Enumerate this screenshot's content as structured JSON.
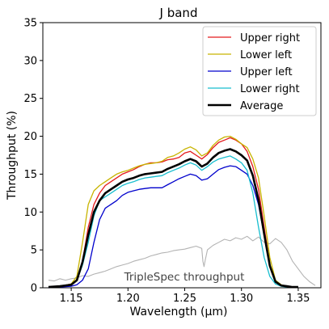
{
  "chart_data": {
    "type": "line",
    "title": "J band",
    "xlabel": "Wavelength (μm)",
    "ylabel": "Throughput (%)",
    "xlim": [
      1.125,
      1.37
    ],
    "ylim": [
      0,
      35
    ],
    "xticks": [
      1.15,
      1.2,
      1.25,
      1.3,
      1.35
    ],
    "xtick_labels": [
      "1.15",
      "1.20",
      "1.25",
      "1.30",
      "1.35"
    ],
    "yticks": [
      0,
      5,
      10,
      15,
      20,
      25,
      30,
      35
    ],
    "ytick_labels": [
      "0",
      "5",
      "10",
      "15",
      "20",
      "25",
      "30",
      "35"
    ],
    "grid": false,
    "legend_position": "top-right",
    "annotation": "TripleSpec throughput",
    "series": [
      {
        "name": "Upper right",
        "color": "#e41a1c",
        "x": [
          1.13,
          1.14,
          1.15,
          1.155,
          1.16,
          1.165,
          1.17,
          1.175,
          1.18,
          1.185,
          1.19,
          1.195,
          1.2,
          1.205,
          1.21,
          1.215,
          1.22,
          1.225,
          1.23,
          1.235,
          1.24,
          1.245,
          1.25,
          1.255,
          1.26,
          1.265,
          1.27,
          1.275,
          1.28,
          1.285,
          1.29,
          1.295,
          1.3,
          1.305,
          1.31,
          1.315,
          1.32,
          1.325,
          1.33,
          1.335,
          1.34,
          1.345,
          1.35
        ],
        "y": [
          0.1,
          0.2,
          0.5,
          1.0,
          3.5,
          8.0,
          11.0,
          12.5,
          13.5,
          14.0,
          14.5,
          15.0,
          15.3,
          15.6,
          16.0,
          16.3,
          16.5,
          16.5,
          16.6,
          16.9,
          17.0,
          17.2,
          17.8,
          18.0,
          17.5,
          17.0,
          17.6,
          18.5,
          19.2,
          19.5,
          19.8,
          19.5,
          19.0,
          18.0,
          16.0,
          13.0,
          8.0,
          3.0,
          0.8,
          0.3,
          0.2,
          0.1,
          0.1
        ]
      },
      {
        "name": "Lower left",
        "color": "#c8b400",
        "x": [
          1.13,
          1.14,
          1.15,
          1.155,
          1.16,
          1.165,
          1.17,
          1.175,
          1.18,
          1.185,
          1.19,
          1.195,
          1.2,
          1.205,
          1.21,
          1.215,
          1.22,
          1.225,
          1.23,
          1.235,
          1.24,
          1.245,
          1.25,
          1.255,
          1.26,
          1.265,
          1.27,
          1.275,
          1.28,
          1.285,
          1.29,
          1.295,
          1.3,
          1.305,
          1.31,
          1.315,
          1.32,
          1.325,
          1.33,
          1.335,
          1.34,
          1.345,
          1.35
        ],
        "y": [
          0.1,
          0.2,
          0.5,
          1.5,
          6.0,
          11.0,
          12.8,
          13.5,
          14.0,
          14.5,
          15.0,
          15.3,
          15.5,
          15.8,
          16.1,
          16.3,
          16.4,
          16.5,
          16.7,
          17.2,
          17.4,
          17.8,
          18.3,
          18.6,
          18.2,
          17.4,
          17.8,
          18.8,
          19.5,
          19.9,
          20.0,
          19.6,
          19.0,
          18.5,
          17.0,
          14.5,
          9.5,
          4.0,
          1.0,
          0.4,
          0.2,
          0.1,
          0.1
        ]
      },
      {
        "name": "Upper left",
        "color": "#0000cc",
        "x": [
          1.13,
          1.14,
          1.15,
          1.155,
          1.16,
          1.165,
          1.17,
          1.175,
          1.18,
          1.185,
          1.19,
          1.195,
          1.2,
          1.205,
          1.21,
          1.215,
          1.22,
          1.225,
          1.23,
          1.235,
          1.24,
          1.245,
          1.25,
          1.255,
          1.26,
          1.265,
          1.27,
          1.275,
          1.28,
          1.285,
          1.29,
          1.295,
          1.3,
          1.305,
          1.31,
          1.315,
          1.32,
          1.325,
          1.33,
          1.335,
          1.34,
          1.345,
          1.35
        ],
        "y": [
          0.0,
          0.1,
          0.2,
          0.4,
          1.0,
          2.5,
          6.0,
          9.0,
          10.5,
          11.0,
          11.5,
          12.2,
          12.6,
          12.8,
          13.0,
          13.1,
          13.2,
          13.2,
          13.2,
          13.6,
          14.0,
          14.4,
          14.7,
          15.0,
          14.8,
          14.2,
          14.4,
          15.0,
          15.6,
          15.9,
          16.1,
          16.0,
          15.5,
          15.0,
          13.5,
          11.0,
          7.0,
          3.0,
          0.9,
          0.3,
          0.1,
          0.1,
          0.0
        ]
      },
      {
        "name": "Lower right",
        "color": "#17becf",
        "x": [
          1.13,
          1.14,
          1.15,
          1.155,
          1.16,
          1.165,
          1.17,
          1.175,
          1.18,
          1.185,
          1.19,
          1.195,
          1.2,
          1.205,
          1.21,
          1.215,
          1.22,
          1.225,
          1.23,
          1.235,
          1.24,
          1.245,
          1.25,
          1.255,
          1.26,
          1.265,
          1.27,
          1.275,
          1.28,
          1.285,
          1.29,
          1.295,
          1.3,
          1.305,
          1.31,
          1.315,
          1.32,
          1.325,
          1.33,
          1.335,
          1.34,
          1.345,
          1.35
        ],
        "y": [
          0.1,
          0.2,
          0.4,
          1.0,
          3.0,
          6.0,
          9.5,
          11.5,
          12.0,
          12.5,
          13.0,
          13.5,
          13.8,
          14.0,
          14.3,
          14.5,
          14.6,
          14.7,
          14.8,
          15.2,
          15.5,
          15.8,
          16.2,
          16.5,
          16.2,
          15.5,
          16.0,
          16.6,
          17.0,
          17.2,
          17.4,
          17.0,
          16.5,
          15.5,
          12.5,
          8.0,
          4.0,
          1.5,
          0.5,
          0.2,
          0.1,
          0.1,
          0.1
        ]
      },
      {
        "name": "Average",
        "color": "#000000",
        "x": [
          1.13,
          1.14,
          1.15,
          1.155,
          1.16,
          1.165,
          1.17,
          1.175,
          1.18,
          1.185,
          1.19,
          1.195,
          1.2,
          1.205,
          1.21,
          1.215,
          1.22,
          1.225,
          1.23,
          1.235,
          1.24,
          1.245,
          1.25,
          1.255,
          1.26,
          1.265,
          1.27,
          1.275,
          1.28,
          1.285,
          1.29,
          1.295,
          1.3,
          1.305,
          1.31,
          1.315,
          1.32,
          1.325,
          1.33,
          1.335,
          1.34,
          1.345,
          1.35
        ],
        "y": [
          0.1,
          0.2,
          0.4,
          1.0,
          3.4,
          7.0,
          10.0,
          11.5,
          12.5,
          13.0,
          13.5,
          14.0,
          14.3,
          14.5,
          14.8,
          15.0,
          15.1,
          15.2,
          15.3,
          15.7,
          16.0,
          16.3,
          16.7,
          17.0,
          16.7,
          16.0,
          16.4,
          17.2,
          17.8,
          18.1,
          18.3,
          18.0,
          17.5,
          16.8,
          14.8,
          11.6,
          7.1,
          2.9,
          0.8,
          0.3,
          0.2,
          0.1,
          0.1
        ]
      },
      {
        "name": "",
        "color": "#b3b3b3",
        "x": [
          1.13,
          1.135,
          1.14,
          1.145,
          1.15,
          1.155,
          1.16,
          1.165,
          1.17,
          1.175,
          1.18,
          1.185,
          1.19,
          1.195,
          1.2,
          1.205,
          1.21,
          1.215,
          1.22,
          1.225,
          1.23,
          1.235,
          1.24,
          1.245,
          1.25,
          1.255,
          1.26,
          1.265,
          1.266,
          1.267,
          1.268,
          1.27,
          1.275,
          1.28,
          1.285,
          1.29,
          1.295,
          1.3,
          1.305,
          1.31,
          1.315,
          1.32,
          1.325,
          1.33,
          1.335,
          1.34,
          1.345,
          1.35,
          1.355,
          1.36,
          1.365
        ],
        "y": [
          1.0,
          0.9,
          1.2,
          1.0,
          1.2,
          1.3,
          1.6,
          1.5,
          1.8,
          2.0,
          2.2,
          2.5,
          2.8,
          3.0,
          3.2,
          3.5,
          3.7,
          3.9,
          4.2,
          4.4,
          4.6,
          4.7,
          4.9,
          5.0,
          5.1,
          5.3,
          5.5,
          5.2,
          3.5,
          2.8,
          3.6,
          5.0,
          5.6,
          6.0,
          6.4,
          6.2,
          6.6,
          6.4,
          6.8,
          6.2,
          6.7,
          6.0,
          5.8,
          6.5,
          6.0,
          5.0,
          3.5,
          2.5,
          1.5,
          0.8,
          0.3
        ]
      }
    ]
  }
}
